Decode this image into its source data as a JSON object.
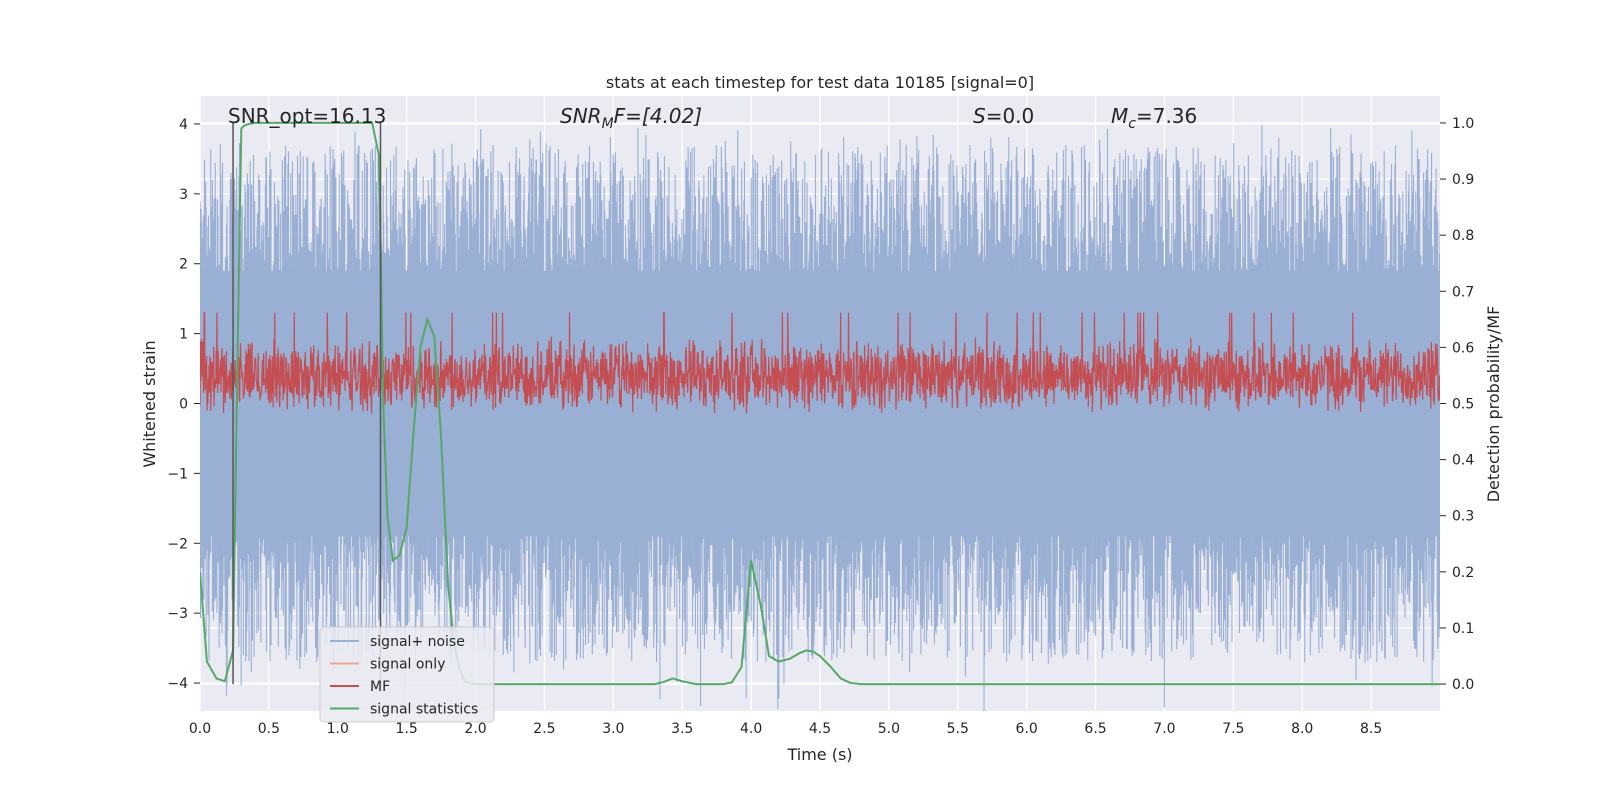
{
  "chart_data": {
    "type": "line",
    "title": "stats at each timestep for test data 10185 [signal=0]",
    "xlabel": "Time (s)",
    "ylabel": "Whitened strain",
    "ylabel_right": "Detection probability/MF",
    "xlim": [
      0.0,
      9.0
    ],
    "ylim": [
      -4.4,
      4.4
    ],
    "ylim_right": [
      -0.048,
      1.048
    ],
    "x_ticks": [
      "0.0",
      "0.5",
      "1.0",
      "1.5",
      "2.0",
      "2.5",
      "3.0",
      "3.5",
      "4.0",
      "4.5",
      "5.0",
      "5.5",
      "6.0",
      "6.5",
      "7.0",
      "7.5",
      "8.0",
      "8.5"
    ],
    "y_ticks": [
      "4",
      "3",
      "2",
      "1",
      "0",
      "−1",
      "−2",
      "−3",
      "−4"
    ],
    "y_ticks_right": [
      "1.0",
      "0.9",
      "0.8",
      "0.7",
      "0.6",
      "0.5",
      "0.4",
      "0.3",
      "0.2",
      "0.1",
      "0.0"
    ],
    "grid": true,
    "legend_position": "lower-left",
    "annotations": {
      "snr_opt": "SNR_opt=16.13",
      "snr_mf_prefix": "SNR",
      "snr_mf_sub": "M",
      "snr_mf_suffix": "F=[4.02]",
      "s_label": "S",
      "s_value": "=0.0",
      "mc_label": "M",
      "mc_sub": "c",
      "mc_value": "=7.36"
    },
    "vlines_x": [
      0.24,
      1.31
    ],
    "series": [
      {
        "name": "signal+ noise",
        "color": "#9aafd4",
        "axis": "left",
        "style": "dense-noise",
        "envelope_abs": 3.2
      },
      {
        "name": "signal only",
        "color": "#e8a98c",
        "axis": "left",
        "style": "line",
        "values": []
      },
      {
        "name": "MF",
        "color": "#c44e52",
        "axis": "right",
        "style": "dense-noise",
        "center": 0.55,
        "envelope": 0.07
      },
      {
        "name": "signal statistics",
        "color": "#55a868",
        "axis": "right",
        "style": "line",
        "x": [
          0.0,
          0.05,
          0.12,
          0.18,
          0.24,
          0.27,
          0.3,
          0.32,
          0.35,
          0.4,
          0.5,
          0.7,
          0.9,
          1.1,
          1.25,
          1.3,
          1.33,
          1.36,
          1.4,
          1.45,
          1.5,
          1.55,
          1.6,
          1.65,
          1.7,
          1.75,
          1.8,
          1.84,
          1.88,
          1.92,
          1.96,
          2.0,
          2.2,
          2.5,
          3.0,
          3.3,
          3.37,
          3.43,
          3.5,
          3.6,
          3.7,
          3.8,
          3.86,
          3.93,
          4.0,
          4.07,
          4.13,
          4.2,
          4.28,
          4.35,
          4.4,
          4.45,
          4.5,
          4.58,
          4.65,
          4.72,
          4.8,
          5.0,
          6.0,
          7.0,
          8.0,
          9.0
        ],
        "values": [
          0.2,
          0.04,
          0.01,
          0.005,
          0.06,
          0.55,
          0.99,
          0.995,
          0.998,
          1.0,
          1.0,
          1.0,
          1.0,
          1.0,
          1.0,
          0.94,
          0.5,
          0.3,
          0.22,
          0.23,
          0.28,
          0.45,
          0.6,
          0.65,
          0.62,
          0.44,
          0.18,
          0.08,
          0.03,
          0.005,
          0.002,
          0.0,
          0.0,
          0.0,
          0.0,
          0.0,
          0.004,
          0.01,
          0.005,
          0.0,
          0.0,
          0.0,
          0.003,
          0.03,
          0.22,
          0.14,
          0.05,
          0.04,
          0.045,
          0.055,
          0.06,
          0.058,
          0.05,
          0.03,
          0.01,
          0.002,
          0.0,
          0.0,
          0.0,
          0.0,
          0.0,
          0.0
        ]
      }
    ]
  }
}
